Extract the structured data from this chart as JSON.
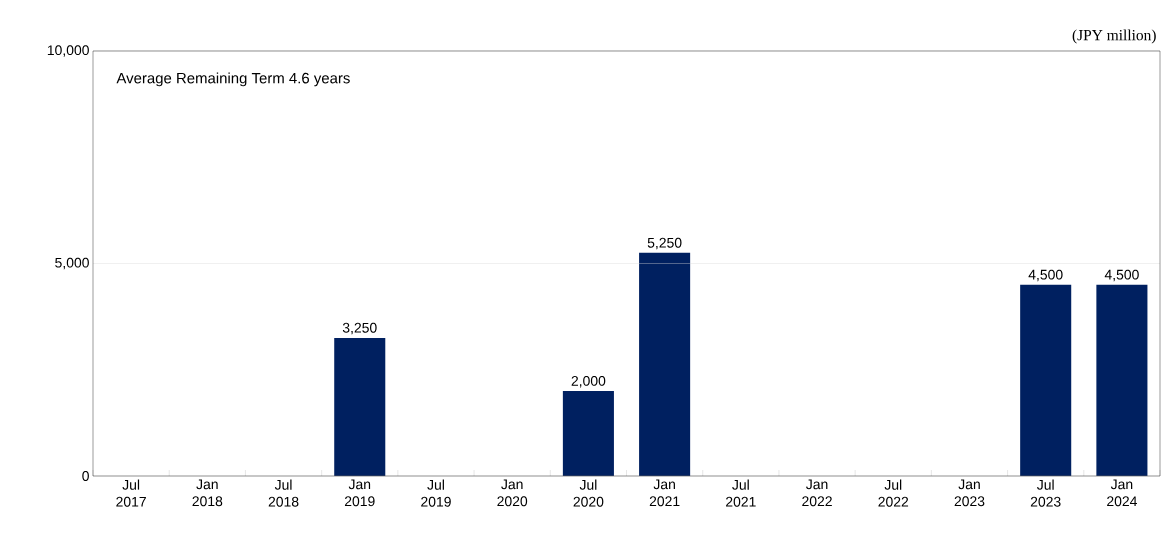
{
  "chart_data": {
    "type": "bar",
    "ylabel": "(JPY million)",
    "annotations": [
      "Average Remaining Term 4.6 years"
    ],
    "categories": [
      "Jul 2017",
      "Jan 2018",
      "Jul 2018",
      "Jan 2019",
      "Jul 2019",
      "Jan 2020",
      "Jul 2020",
      "Jan 2021",
      "Jul 2021",
      "Jan 2022",
      "Jul 2022",
      "Jan 2023",
      "Jul 2023",
      "Jan 2024"
    ],
    "values": [
      0,
      0,
      0,
      3250,
      0,
      0,
      2000,
      5250,
      0,
      0,
      0,
      0,
      4500,
      4500
    ],
    "value_labels": [
      null,
      null,
      null,
      "3,250",
      null,
      null,
      "2,000",
      "5,250",
      null,
      null,
      null,
      null,
      "4,500",
      "4,500"
    ],
    "color": "#002060",
    "ylim": [
      0,
      10000
    ],
    "yticks": [
      0,
      {
        "value": 5000,
        "label": "5,000"
      },
      {
        "value": 10000,
        "label": "10,000"
      }
    ],
    "grid": "y"
  }
}
